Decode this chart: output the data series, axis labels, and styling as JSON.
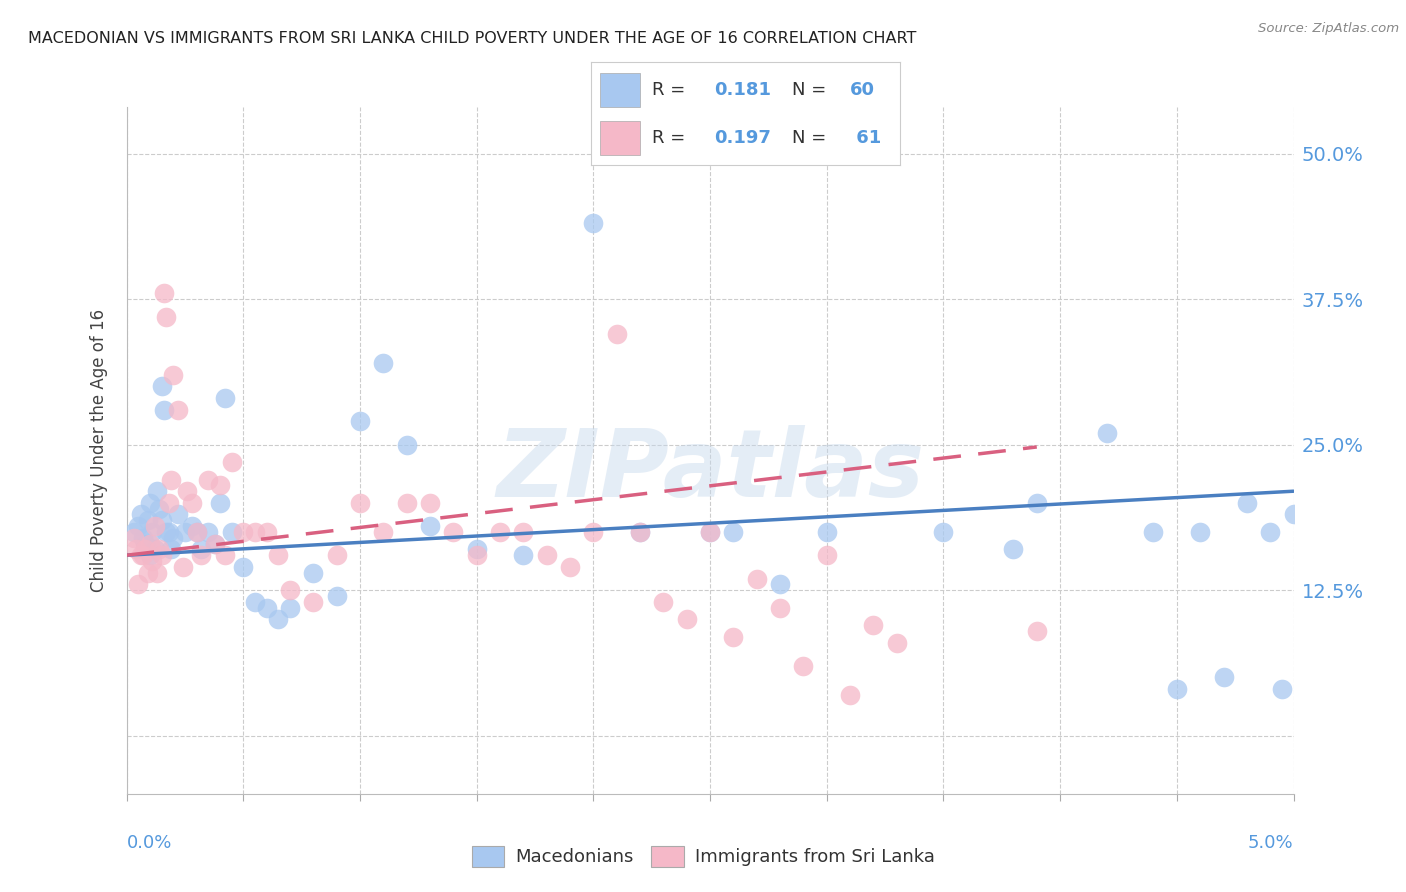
{
  "title": "MACEDONIAN VS IMMIGRANTS FROM SRI LANKA CHILD POVERTY UNDER THE AGE OF 16 CORRELATION CHART",
  "source": "Source: ZipAtlas.com",
  "ylabel": "Child Poverty Under the Age of 16",
  "yticks": [
    0.0,
    0.125,
    0.25,
    0.375,
    0.5
  ],
  "ytick_labels": [
    "",
    "12.5%",
    "25.0%",
    "37.5%",
    "50.0%"
  ],
  "xlim": [
    0.0,
    0.05
  ],
  "ylim": [
    -0.05,
    0.54
  ],
  "blue_color": "#a8c8f0",
  "pink_color": "#f5b8c8",
  "line_blue": "#4a7fc1",
  "line_pink": "#d96080",
  "text_blue": "#5599dd",
  "background": "#ffffff",
  "grid_color": "#cccccc",
  "blue_scatter_x": [
    0.0003,
    0.0005,
    0.0006,
    0.0007,
    0.0008,
    0.0009,
    0.001,
    0.001,
    0.0011,
    0.0012,
    0.0013,
    0.0014,
    0.0015,
    0.0015,
    0.0016,
    0.0017,
    0.0018,
    0.0019,
    0.002,
    0.0022,
    0.0025,
    0.0028,
    0.003,
    0.0032,
    0.0035,
    0.0038,
    0.004,
    0.0042,
    0.0045,
    0.005,
    0.0055,
    0.006,
    0.0065,
    0.007,
    0.008,
    0.009,
    0.01,
    0.011,
    0.012,
    0.013,
    0.015,
    0.017,
    0.02,
    0.022,
    0.025,
    0.028,
    0.03,
    0.035,
    0.039,
    0.042,
    0.044,
    0.045,
    0.046,
    0.047,
    0.048,
    0.049,
    0.0495,
    0.05,
    0.038,
    0.026
  ],
  "blue_scatter_y": [
    0.175,
    0.18,
    0.19,
    0.17,
    0.165,
    0.185,
    0.2,
    0.155,
    0.175,
    0.16,
    0.21,
    0.195,
    0.185,
    0.3,
    0.28,
    0.175,
    0.175,
    0.16,
    0.17,
    0.19,
    0.175,
    0.18,
    0.175,
    0.16,
    0.175,
    0.165,
    0.2,
    0.29,
    0.175,
    0.145,
    0.115,
    0.11,
    0.1,
    0.11,
    0.14,
    0.12,
    0.27,
    0.32,
    0.25,
    0.18,
    0.16,
    0.155,
    0.44,
    0.175,
    0.175,
    0.13,
    0.175,
    0.175,
    0.2,
    0.26,
    0.175,
    0.04,
    0.175,
    0.05,
    0.2,
    0.175,
    0.04,
    0.19,
    0.16,
    0.175
  ],
  "pink_scatter_x": [
    0.0003,
    0.0004,
    0.0005,
    0.0006,
    0.0007,
    0.0008,
    0.0009,
    0.001,
    0.0011,
    0.0012,
    0.0013,
    0.0014,
    0.0015,
    0.0016,
    0.0017,
    0.0018,
    0.0019,
    0.002,
    0.0022,
    0.0024,
    0.0026,
    0.0028,
    0.003,
    0.0032,
    0.0035,
    0.0038,
    0.004,
    0.0042,
    0.0045,
    0.005,
    0.0055,
    0.006,
    0.0065,
    0.007,
    0.008,
    0.009,
    0.01,
    0.011,
    0.012,
    0.013,
    0.014,
    0.015,
    0.016,
    0.017,
    0.018,
    0.019,
    0.02,
    0.021,
    0.022,
    0.023,
    0.024,
    0.025,
    0.026,
    0.027,
    0.028,
    0.029,
    0.03,
    0.031,
    0.032,
    0.033,
    0.039
  ],
  "pink_scatter_y": [
    0.17,
    0.16,
    0.13,
    0.155,
    0.155,
    0.16,
    0.14,
    0.165,
    0.15,
    0.18,
    0.14,
    0.16,
    0.155,
    0.38,
    0.36,
    0.2,
    0.22,
    0.31,
    0.28,
    0.145,
    0.21,
    0.2,
    0.175,
    0.155,
    0.22,
    0.165,
    0.215,
    0.155,
    0.235,
    0.175,
    0.175,
    0.175,
    0.155,
    0.125,
    0.115,
    0.155,
    0.2,
    0.175,
    0.2,
    0.2,
    0.175,
    0.155,
    0.175,
    0.175,
    0.155,
    0.145,
    0.175,
    0.345,
    0.175,
    0.115,
    0.1,
    0.175,
    0.085,
    0.135,
    0.11,
    0.06,
    0.155,
    0.035,
    0.095,
    0.08,
    0.09
  ],
  "blue_line_x": [
    0.0,
    0.05
  ],
  "blue_line_y": [
    0.155,
    0.21
  ],
  "pink_line_x": [
    0.0,
    0.039
  ],
  "pink_line_y": [
    0.155,
    0.248
  ]
}
